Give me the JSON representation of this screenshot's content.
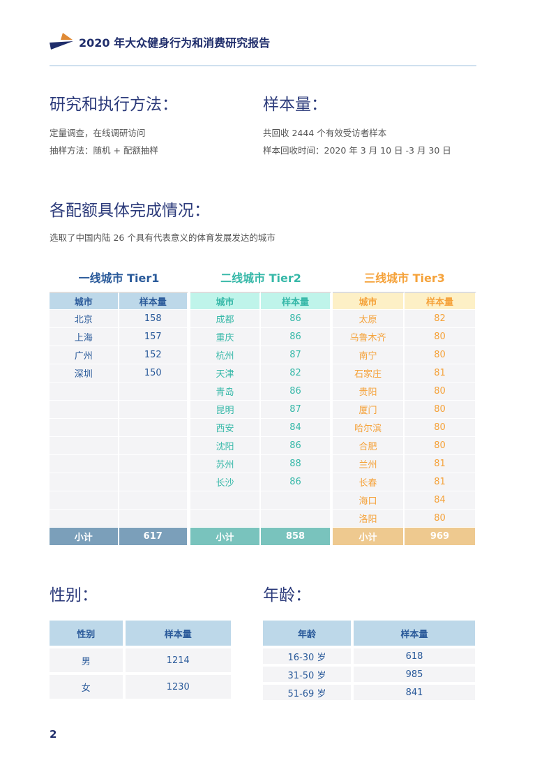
{
  "header": {
    "title": "2020 年大众健身行为和消费研究报告"
  },
  "method": {
    "heading": "研究和执行方法：",
    "lines": [
      "定量调查，在线调研访问",
      "抽样方法：随机 + 配额抽样"
    ]
  },
  "sample": {
    "heading": "样本量：",
    "lines": [
      "共回收 2444 个有效受访者样本",
      "样本回收时间：2020 年 3 月 10 日 -3 月 30 日"
    ]
  },
  "quota": {
    "heading": "各配额具体完成情况：",
    "desc": "选取了中国内陆 26 个具有代表意义的体育发展发达的城市"
  },
  "tiers": [
    {
      "title": "一线城市 Tier1",
      "col_city": "城市",
      "col_n": "样本量",
      "color": "#2a5a9a",
      "header_bg": "#bdd8e9",
      "sub_bg": "#7b9fba",
      "rows": [
        [
          "北京",
          "158"
        ],
        [
          "上海",
          "157"
        ],
        [
          "广州",
          "152"
        ],
        [
          "深圳",
          "150"
        ]
      ],
      "subtotal_label": "小计",
      "subtotal": "617"
    },
    {
      "title": "二线城市 Tier2",
      "col_city": "城市",
      "col_n": "样本量",
      "color": "#36b8a8",
      "header_bg": "#bff4ea",
      "sub_bg": "#79c3bd",
      "rows": [
        [
          "成都",
          "86"
        ],
        [
          "重庆",
          "86"
        ],
        [
          "杭州",
          "87"
        ],
        [
          "天津",
          "82"
        ],
        [
          "青岛",
          "86"
        ],
        [
          "昆明",
          "87"
        ],
        [
          "西安",
          "84"
        ],
        [
          "沈阳",
          "86"
        ],
        [
          "苏州",
          "88"
        ],
        [
          "长沙",
          "86"
        ]
      ],
      "subtotal_label": "小计",
      "subtotal": "858"
    },
    {
      "title": "三线城市 Tier3",
      "col_city": "城市",
      "col_n": "样本量",
      "color": "#f5a23a",
      "header_bg": "#fdf0c6",
      "sub_bg": "#eec98f",
      "rows": [
        [
          "太原",
          "82"
        ],
        [
          "乌鲁木齐",
          "80"
        ],
        [
          "南宁",
          "80"
        ],
        [
          "石家庄",
          "81"
        ],
        [
          "贵阳",
          "80"
        ],
        [
          "厦门",
          "80"
        ],
        [
          "哈尔滨",
          "80"
        ],
        [
          "合肥",
          "80"
        ],
        [
          "兰州",
          "81"
        ],
        [
          "长春",
          "81"
        ],
        [
          "海口",
          "84"
        ],
        [
          "洛阳",
          "80"
        ]
      ],
      "subtotal_label": "小计",
      "subtotal": "969"
    }
  ],
  "gender": {
    "heading": "性别：",
    "cols": [
      "性别",
      "样本量"
    ],
    "rows": [
      [
        "男",
        "1214"
      ],
      [
        "女",
        "1230"
      ]
    ]
  },
  "age": {
    "heading": "年龄：",
    "cols": [
      "年龄",
      "样本量"
    ],
    "rows": [
      [
        "16-30 岁",
        "618"
      ],
      [
        "31-50 岁",
        "985"
      ],
      [
        "51-69 岁",
        "841"
      ]
    ]
  },
  "page_number": "2"
}
